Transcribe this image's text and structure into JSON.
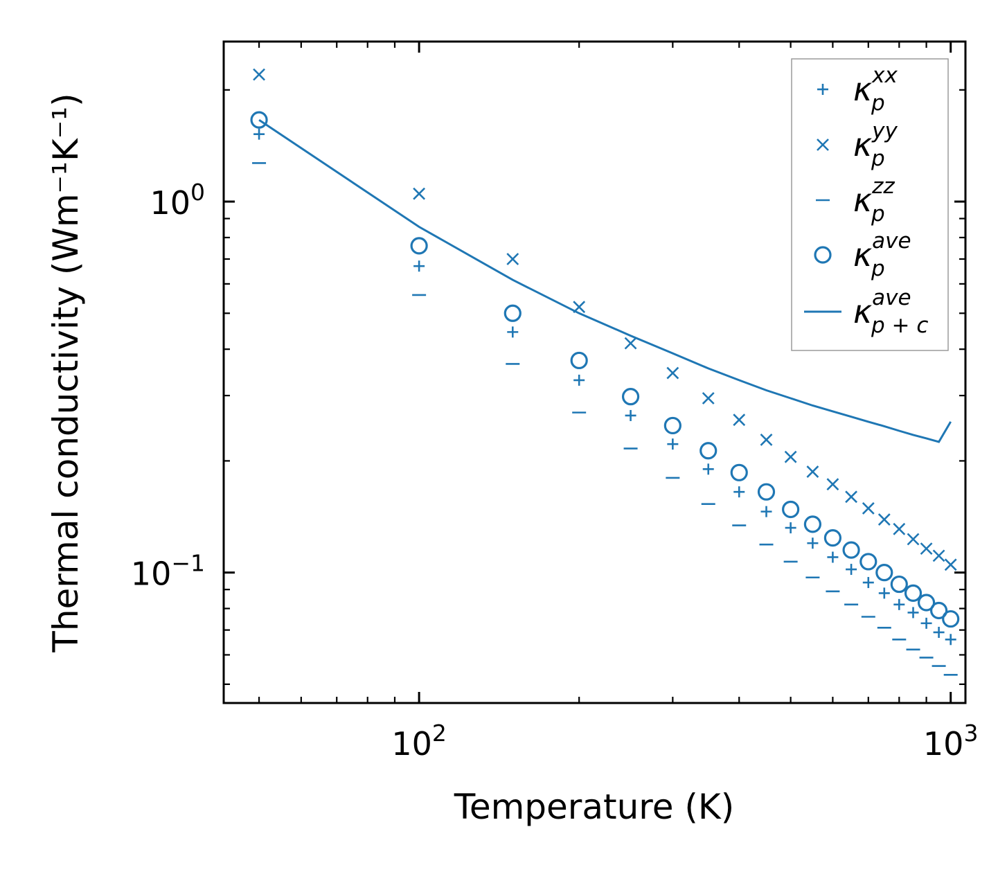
{
  "chart_data": {
    "type": "scatter",
    "title": "",
    "xlabel": "Temperature (K)",
    "ylabel": "Thermal conductivity (Wm⁻¹K⁻¹)",
    "xscale": "log",
    "yscale": "log",
    "xlim": [
      42.9,
      1066
    ],
    "ylim": [
      0.0445,
      2.7
    ],
    "grid": false,
    "legend_position": "top-right",
    "x_major_ticks": [
      {
        "value": 100,
        "base": "10",
        "exp": "2"
      },
      {
        "value": 1000,
        "base": "10",
        "exp": "3"
      }
    ],
    "y_major_ticks": [
      {
        "value": 0.1,
        "base": "10",
        "exp": "−1"
      },
      {
        "value": 1,
        "base": "10",
        "exp": "0"
      }
    ],
    "x": [
      50,
      100,
      150,
      200,
      250,
      300,
      350,
      400,
      450,
      500,
      550,
      600,
      650,
      700,
      750,
      800,
      850,
      900,
      950,
      1000
    ],
    "series": [
      {
        "name": "kappa_p_xx",
        "label_base": "κ",
        "label_sub": "p",
        "label_sup": "xx",
        "marker": "plus",
        "values": [
          1.52,
          0.67,
          0.445,
          0.33,
          0.265,
          0.222,
          0.19,
          0.165,
          0.146,
          0.132,
          0.12,
          0.11,
          0.102,
          0.094,
          0.088,
          0.082,
          0.078,
          0.073,
          0.069,
          0.066
        ]
      },
      {
        "name": "kappa_p_yy",
        "label_base": "κ",
        "label_sub": "p",
        "label_sup": "yy",
        "marker": "x",
        "values": [
          2.2,
          1.05,
          0.7,
          0.52,
          0.415,
          0.345,
          0.295,
          0.258,
          0.228,
          0.205,
          0.187,
          0.173,
          0.16,
          0.149,
          0.139,
          0.131,
          0.123,
          0.116,
          0.111,
          0.105
        ]
      },
      {
        "name": "kappa_p_zz",
        "label_base": "κ",
        "label_sub": "p",
        "label_sup": "zz",
        "marker": "dash",
        "values": [
          1.27,
          0.56,
          0.365,
          0.27,
          0.216,
          0.18,
          0.153,
          0.134,
          0.119,
          0.107,
          0.097,
          0.089,
          0.082,
          0.076,
          0.071,
          0.066,
          0.062,
          0.059,
          0.056,
          0.053
        ]
      },
      {
        "name": "kappa_p_ave",
        "label_base": "κ",
        "label_sub": "p",
        "label_sup": "ave",
        "marker": "circle",
        "values": [
          1.66,
          0.76,
          0.5,
          0.373,
          0.298,
          0.249,
          0.213,
          0.186,
          0.165,
          0.148,
          0.135,
          0.124,
          0.115,
          0.107,
          0.1,
          0.093,
          0.088,
          0.083,
          0.079,
          0.075
        ]
      },
      {
        "name": "kappa_p+c_ave",
        "label_base": "κ",
        "label_sub": "p + c",
        "label_sup": "ave",
        "marker": "line",
        "values": [
          1.66,
          0.855,
          0.615,
          0.5,
          0.435,
          0.39,
          0.355,
          0.33,
          0.31,
          0.295,
          0.282,
          0.272,
          0.263,
          0.255,
          0.248,
          0.241,
          0.235,
          0.23,
          0.225,
          0.255
        ]
      }
    ],
    "color": "#1f77b4"
  }
}
